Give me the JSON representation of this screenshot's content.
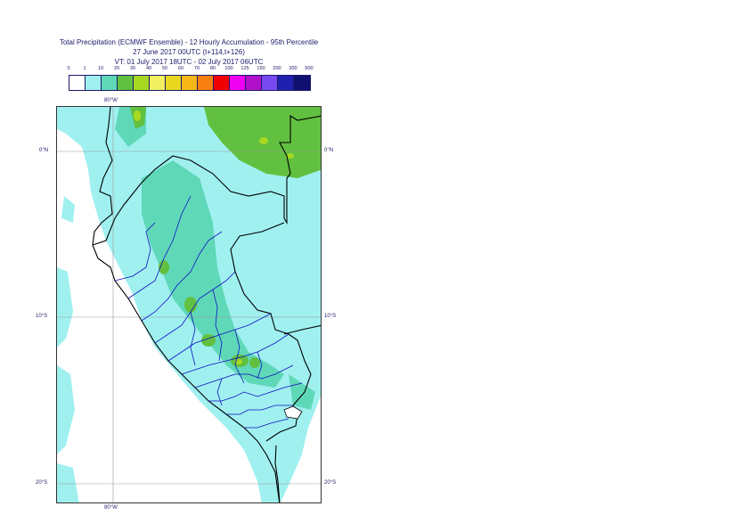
{
  "title": {
    "line1": "Total Precipitation (ECMWF Ensemble) - 12 Hourly Accumulation - 95th Percentile",
    "line2": "27 June 2017 00UTC (t+114,t+126)",
    "line3": "VT: 01 July 2017 18UTC - 02 July 2017 06UTC"
  },
  "legend": {
    "ticks": [
      "0",
      "1",
      "10",
      "20",
      "30",
      "40",
      "50",
      "60",
      "70",
      "80",
      "100",
      "125",
      "150",
      "200",
      "300",
      "500"
    ],
    "colors": [
      "#ffffff",
      "#a0f0f0",
      "#5fd8b8",
      "#62c040",
      "#a8d820",
      "#f0f060",
      "#e8d820",
      "#f8b818",
      "#f88010",
      "#f00000",
      "#f000f0",
      "#b010c8",
      "#7848f0",
      "#2020b0",
      "#101070"
    ]
  },
  "axes": {
    "top_lon": "80°W",
    "bottom_lon": "80°W",
    "lat_labels": [
      "0°N",
      "10°S",
      "20°S"
    ]
  }
}
